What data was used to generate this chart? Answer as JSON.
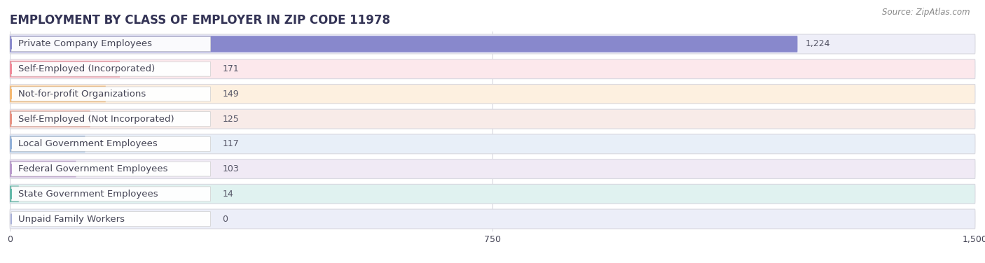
{
  "title": "EMPLOYMENT BY CLASS OF EMPLOYER IN ZIP CODE 11978",
  "source": "Source: ZipAtlas.com",
  "categories": [
    "Private Company Employees",
    "Self-Employed (Incorporated)",
    "Not-for-profit Organizations",
    "Self-Employed (Not Incorporated)",
    "Local Government Employees",
    "Federal Government Employees",
    "State Government Employees",
    "Unpaid Family Workers"
  ],
  "values": [
    1224,
    171,
    149,
    125,
    117,
    103,
    14,
    0
  ],
  "bar_colors": [
    "#8888cc",
    "#f08898",
    "#f5b870",
    "#e89080",
    "#90b0d8",
    "#b898cc",
    "#60b8a8",
    "#a8b0d8"
  ],
  "bar_bg_colors": [
    "#eeeef8",
    "#fce8ec",
    "#fdf0e0",
    "#f8ebe8",
    "#e8eff8",
    "#f0eaf5",
    "#e0f2f0",
    "#eceef8"
  ],
  "label_color": "#444455",
  "value_color": "#555566",
  "title_color": "#333355",
  "xlim": [
    0,
    1500
  ],
  "xticks": [
    0,
    750,
    1500
  ],
  "background_color": "#ffffff",
  "title_fontsize": 12,
  "label_fontsize": 9.5,
  "value_fontsize": 9,
  "source_fontsize": 8.5
}
